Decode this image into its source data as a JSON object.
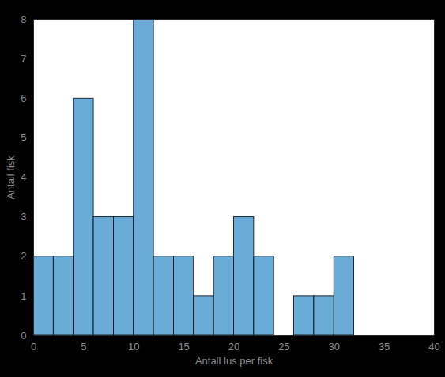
{
  "chart_data": {
    "type": "histogram",
    "x_label": "Antall lus per fisk",
    "y_label": "Antall fisk",
    "bins": [
      0,
      2,
      4,
      6,
      8,
      10,
      12,
      14,
      16,
      18,
      20,
      22,
      24,
      26,
      28,
      30,
      32
    ],
    "values": [
      2,
      2,
      6,
      3,
      3,
      8,
      2,
      2,
      1,
      2,
      3,
      2,
      0,
      1,
      1,
      2
    ],
    "color": "#6aacd8",
    "xlim": [
      0,
      40
    ],
    "xticks": [
      0,
      5,
      10,
      15,
      20,
      25,
      30,
      35,
      40
    ],
    "ylim": [
      0,
      8
    ],
    "yticks": [
      0,
      1,
      2,
      3,
      4,
      5,
      6,
      7,
      8
    ],
    "grid": false
  }
}
